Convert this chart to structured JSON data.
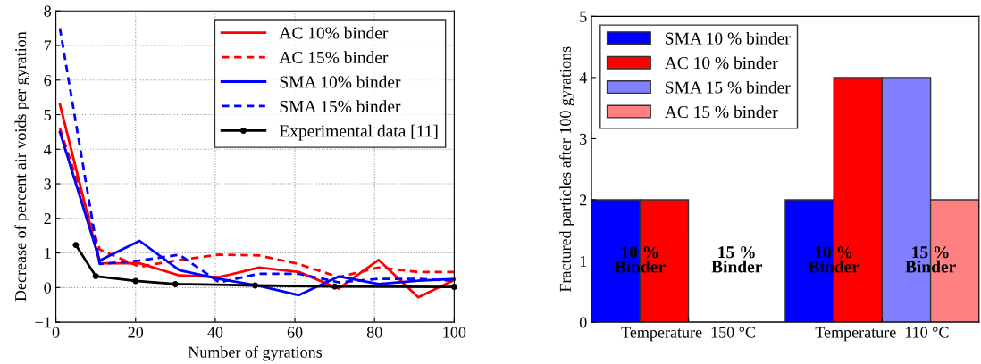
{
  "chart_data": [
    {
      "type": "line",
      "xlabel": "Number of gyrations",
      "ylabel": "Decrease of percent air voids per gyration",
      "xlim": [
        0,
        100
      ],
      "ylim": [
        -1,
        8
      ],
      "xticks": [
        0,
        20,
        40,
        60,
        80,
        100
      ],
      "yticks": [
        {
          "value": -1,
          "label": "−1"
        },
        0,
        1,
        2,
        3,
        4,
        5,
        6,
        7,
        8
      ],
      "grid": true,
      "legend": "top right",
      "series": [
        {
          "name": "AC 10% binder",
          "color": "#ff0000",
          "line_style": "solid",
          "x": [
            1,
            11,
            21,
            31,
            41,
            51,
            61,
            71,
            81,
            91,
            100
          ],
          "values": [
            5.3,
            0.7,
            0.7,
            0.35,
            0.3,
            0.58,
            0.45,
            -0.03,
            0.8,
            -0.28,
            0.22
          ]
        },
        {
          "name": "AC 15% binder",
          "color": "#ff0000",
          "line_style": "dashed",
          "x": [
            1,
            11,
            21,
            31,
            41,
            51,
            61,
            71,
            81,
            91,
            100
          ],
          "values": [
            4.6,
            1.1,
            0.6,
            0.8,
            0.95,
            0.93,
            0.68,
            0.3,
            0.58,
            0.45,
            0.45
          ]
        },
        {
          "name": "SMA 10% binder",
          "color": "#0000ff",
          "line_style": "solid",
          "x": [
            1,
            11,
            21,
            31,
            41,
            51,
            61,
            71,
            81,
            91,
            100
          ],
          "values": [
            4.5,
            0.78,
            1.35,
            0.5,
            0.25,
            0.05,
            -0.22,
            0.32,
            0.1,
            0.2,
            0.25
          ]
        },
        {
          "name": "SMA 15% binder",
          "color": "#0000ff",
          "line_style": "dashed",
          "x": [
            1,
            11,
            21,
            31,
            41,
            51,
            61,
            71,
            81,
            91,
            100
          ],
          "values": [
            7.5,
            0.68,
            0.78,
            0.95,
            0.15,
            0.4,
            0.4,
            0.15,
            0.25,
            0.25,
            0.2
          ]
        },
        {
          "name": "Experimental data [11]",
          "color": "#000000",
          "line_style": "solid",
          "marker": "circle",
          "x": [
            5,
            10,
            20,
            30,
            50,
            70,
            100
          ],
          "values": [
            1.23,
            0.33,
            0.19,
            0.1,
            0.06,
            0.03,
            0.02
          ]
        }
      ]
    },
    {
      "type": "bar",
      "ylabel": "Fractured particles after 100 gyrations",
      "categories": [
        "Temperature  150 °C",
        "Temperature  110 °C"
      ],
      "ylim": [
        0,
        5
      ],
      "yticks": [
        0,
        1,
        2,
        3,
        4,
        5
      ],
      "grid": false,
      "legend": "top left",
      "series": [
        {
          "name": "SMA 10 % binder",
          "color": "#0000ff",
          "values": [
            2,
            2
          ]
        },
        {
          "name": "AC 10 % binder",
          "color": "#ff0000",
          "values": [
            2,
            4
          ]
        },
        {
          "name": "SMA 15 % binder",
          "color": "#8080ff",
          "values": [
            0,
            4
          ]
        },
        {
          "name": "AC 15 % binder",
          "color": "#ff8080",
          "values": [
            0,
            2
          ]
        }
      ],
      "annotations": [
        "10 %\nBinder",
        "15 %\nBinder",
        "10 %\nBinder",
        "15 %\nBinder"
      ]
    }
  ]
}
